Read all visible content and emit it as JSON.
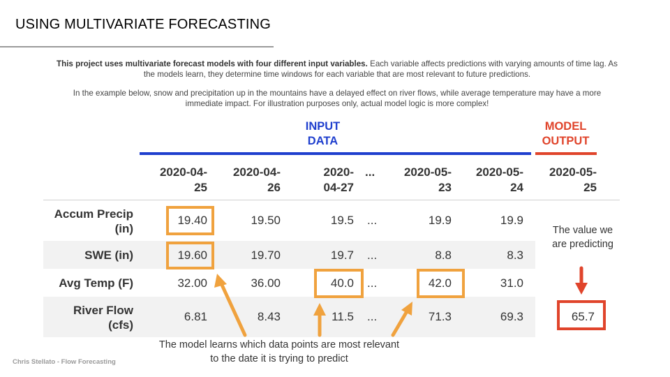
{
  "slide": {
    "title": "USING MULTIVARIATE FORECASTING",
    "footer": "Chris Stellato - Flow Forecasting"
  },
  "intro": {
    "p1_bold": "This project uses multivariate forecast models with four different input variables.",
    "p1_rest": " Each variable affects predictions with varying amounts of time lag. As the models learn, they determine time windows for each variable that are most relevant to future predictions.",
    "p2": "In the example below, snow and precipitation up in the mountains have a delayed effect on river flows, while average temperature may have a more immediate impact. For illustration purposes only, actual model logic is more complex!"
  },
  "headers": {
    "input_line1": "INPUT",
    "input_line2": "DATA",
    "output_line1": "MODEL",
    "output_line2": "OUTPUT",
    "input_color": "#1f3fce",
    "output_color": "#e0442b",
    "highlight_color": "#f0a23e"
  },
  "table": {
    "columns": [
      {
        "line1": "2020-04-",
        "line2": "25"
      },
      {
        "line1": "2020-04-",
        "line2": "26"
      },
      {
        "line1": "2020-",
        "line2": "04-27"
      },
      {
        "line1": "",
        "line2": "..."
      },
      {
        "line1": "2020-05-",
        "line2": "23"
      },
      {
        "line1": "2020-05-",
        "line2": "24"
      },
      {
        "line1": "2020-05-",
        "line2": "25"
      }
    ],
    "rows": [
      {
        "label1": "Accum Precip",
        "label2": "(in)",
        "values": [
          "19.40",
          "19.50",
          "19.5",
          "...",
          "19.9",
          "19.9"
        ]
      },
      {
        "label1": "SWE (in)",
        "label2": "",
        "values": [
          "19.60",
          "19.70",
          "19.7",
          "...",
          "8.8",
          "8.3"
        ]
      },
      {
        "label1": "Avg Temp (F)",
        "label2": "",
        "values": [
          "32.00",
          "36.00",
          "40.0",
          "...",
          "42.0",
          "31.0"
        ]
      },
      {
        "label1": "River Flow",
        "label2": "(cfs)",
        "values": [
          "6.81",
          "8.43",
          "11.5",
          "...",
          "71.3",
          "69.3"
        ],
        "prediction": "65.7"
      }
    ]
  },
  "annotations": {
    "predict_note": "The value we are predicting",
    "caption": "The model learns which data points are most relevant to the date it is trying to predict"
  }
}
